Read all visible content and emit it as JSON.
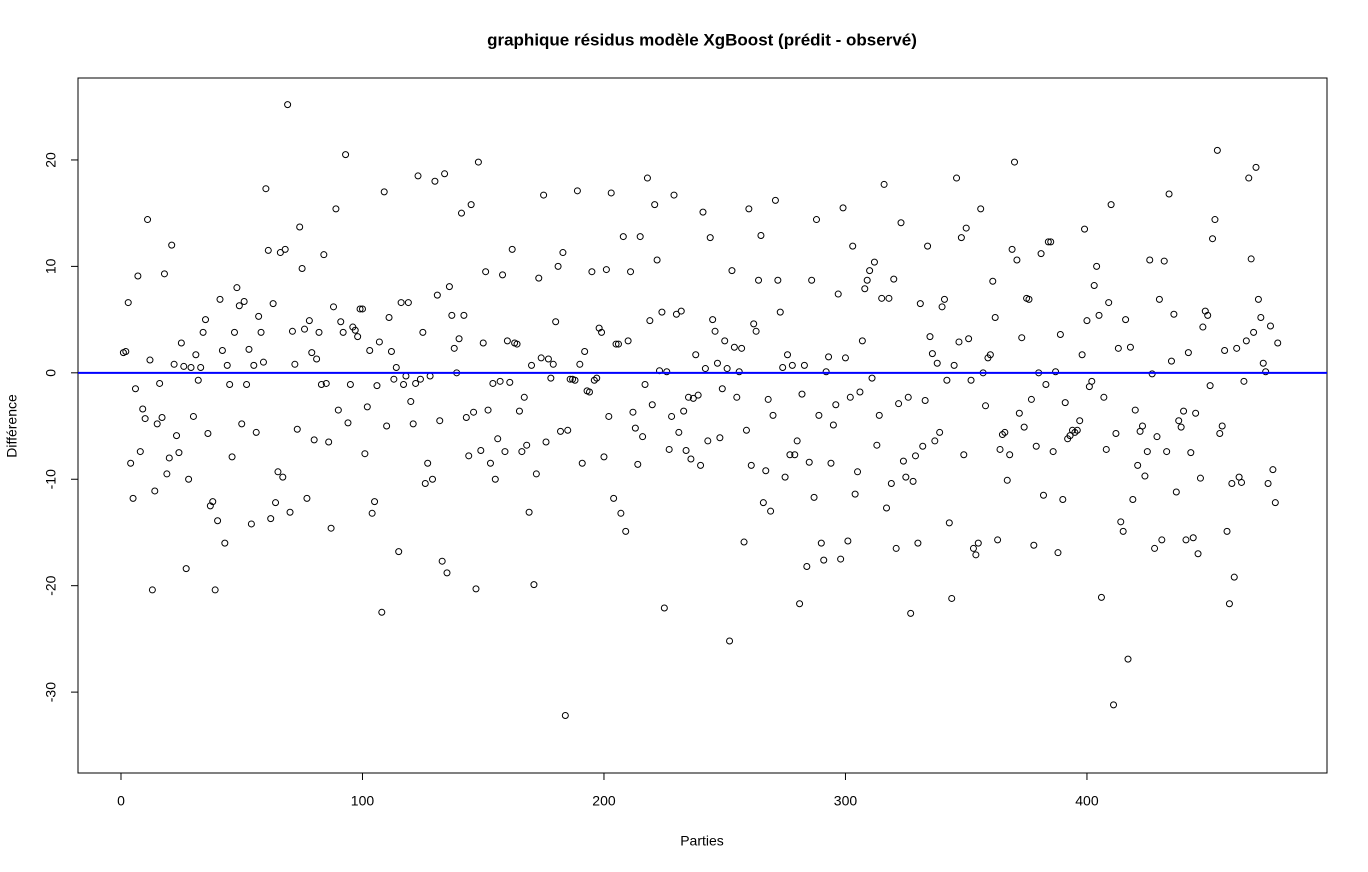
{
  "chart_data": {
    "type": "scatter",
    "title": "graphique résidus modèle XgBoost (prédit - observé)",
    "x_label": "Parties",
    "y_label": "Différence",
    "color": "#000000",
    "reference_line": {
      "value": 0,
      "color": "#0000ff"
    },
    "xlim": [
      -17.8,
      499.4
    ],
    "ylim": [
      -37.6,
      27.7
    ],
    "xticks": [
      0,
      100,
      200,
      300,
      400
    ],
    "yticks": [
      -30,
      -20,
      -10,
      0,
      10,
      20
    ],
    "values": [
      1.9,
      2.0,
      6.6,
      -8.5,
      -11.8,
      -1.5,
      9.1,
      -7.4,
      -3.4,
      -4.3,
      14.4,
      1.2,
      -20.4,
      -11.1,
      -4.8,
      -1.0,
      -4.2,
      9.3,
      -9.5,
      -8.0,
      12.0,
      0.8,
      -5.9,
      -7.5,
      2.8,
      0.6,
      -18.4,
      -10.0,
      0.5,
      -4.1,
      1.7,
      -0.7,
      0.5,
      3.8,
      5.0,
      -5.7,
      -12.5,
      -12.1,
      -20.4,
      -13.9,
      6.9,
      2.1,
      -16.0,
      0.7,
      -1.1,
      -7.9,
      3.8,
      8.0,
      6.3,
      -4.8,
      6.7,
      -1.1,
      2.2,
      -14.2,
      0.7,
      -5.6,
      5.3,
      3.8,
      1.0,
      17.3,
      11.5,
      -13.7,
      6.5,
      -12.2,
      -9.3,
      11.3,
      -9.8,
      11.6,
      25.2,
      -13.1,
      3.9,
      0.8,
      -5.3,
      13.7,
      9.8,
      4.1,
      -11.8,
      4.9,
      1.9,
      -6.3,
      1.3,
      3.8,
      -1.1,
      11.1,
      -1.0,
      -6.5,
      -14.6,
      6.2,
      15.4,
      -3.5,
      4.8,
      3.8,
      20.5,
      -4.7,
      -1.1,
      4.3,
      4.0,
      3.4,
      6.0,
      6.0,
      -7.6,
      -3.2,
      2.1,
      -13.2,
      -12.1,
      -1.2,
      2.9,
      -22.5,
      17.0,
      -5.0,
      5.2,
      2.0,
      -0.6,
      0.5,
      -16.8,
      6.6,
      -1.1,
      -0.3,
      6.6,
      -2.7,
      -4.8,
      -1.0,
      18.5,
      -0.6,
      3.8,
      -10.4,
      -8.5,
      -0.3,
      -10.0,
      18.0,
      7.3,
      -4.5,
      -17.7,
      18.7,
      -18.8,
      8.1,
      5.4,
      2.3,
      0.0,
      3.2,
      15.0,
      5.4,
      -4.2,
      -7.8,
      15.8,
      -3.7,
      -20.3,
      19.8,
      -7.3,
      2.8,
      9.5,
      -3.5,
      -8.5,
      -1.0,
      -10.0,
      -6.2,
      -0.8,
      9.2,
      -7.4,
      3.0,
      -0.9,
      11.6,
      2.8,
      2.7,
      -3.6,
      -7.4,
      -2.3,
      -6.8,
      -13.1,
      0.7,
      -19.9,
      -9.5,
      8.9,
      1.4,
      16.7,
      -6.5,
      1.3,
      -0.5,
      0.8,
      4.8,
      10.0,
      -5.5,
      11.3,
      -32.2,
      -5.4,
      -0.6,
      -0.6,
      -0.7,
      17.1,
      0.8,
      -8.5,
      2.0,
      -1.7,
      -1.8,
      9.5,
      -0.7,
      -0.5,
      4.2,
      3.8,
      -7.9,
      9.7,
      -4.1,
      16.9,
      -11.8,
      2.7,
      2.7,
      -13.2,
      12.8,
      -14.9,
      3.0,
      9.5,
      -3.7,
      -5.2,
      -8.6,
      12.8,
      -6.0,
      -1.1,
      18.3,
      4.9,
      -3.0,
      15.8,
      10.6,
      0.2,
      5.7,
      -22.1,
      0.1,
      -7.2,
      -4.1,
      16.7,
      5.5,
      -5.6,
      5.8,
      -3.6,
      -7.3,
      -2.3,
      -8.1,
      -2.4,
      1.7,
      -2.1,
      -8.7,
      15.1,
      0.4,
      -6.4,
      12.7,
      5.0,
      3.9,
      0.9,
      -6.1,
      -1.5,
      3.0,
      0.4,
      -25.2,
      9.6,
      2.4,
      -2.3,
      0.1,
      2.3,
      -15.9,
      -5.4,
      15.4,
      -8.7,
      4.6,
      3.9,
      8.7,
      12.9,
      -12.2,
      -9.2,
      -2.5,
      -13.0,
      -4.0,
      16.2,
      8.7,
      5.7,
      0.5,
      -9.8,
      1.7,
      -7.7,
      0.7,
      -7.7,
      -6.4,
      -21.7,
      -2.0,
      0.7,
      -18.2,
      -8.4,
      8.7,
      -11.7,
      14.4,
      -4.0,
      -16.0,
      -17.6,
      0.1,
      1.5,
      -8.5,
      -4.9,
      -3.0,
      7.4,
      -17.5,
      15.5,
      1.4,
      -15.8,
      -2.3,
      11.9,
      -11.4,
      -9.3,
      -1.8,
      3.0,
      7.9,
      8.7,
      9.6,
      -0.5,
      10.4,
      -6.8,
      -4.0,
      7.0,
      17.7,
      -12.7,
      7.0,
      -10.4,
      8.8,
      -16.5,
      -2.9,
      14.1,
      -8.3,
      -9.8,
      -2.3,
      -22.6,
      -10.2,
      -7.8,
      -16.0,
      6.5,
      -6.9,
      -2.6,
      11.9,
      3.4,
      1.8,
      -6.4,
      0.9,
      -5.6,
      6.2,
      6.9,
      -0.7,
      -14.1,
      -21.2,
      0.7,
      18.3,
      2.9,
      12.7,
      -7.7,
      13.6,
      3.2,
      -0.7,
      -16.5,
      -17.1,
      -16.0,
      15.4,
      0.0,
      -3.1,
      1.4,
      1.7,
      8.6,
      5.2,
      -15.7,
      -7.2,
      -5.8,
      -5.6,
      -10.1,
      -7.7,
      11.6,
      19.8,
      10.6,
      -3.8,
      3.3,
      -5.1,
      7.0,
      6.9,
      -2.5,
      -16.2,
      -6.9,
      0.0,
      11.2,
      -11.5,
      -1.1,
      12.3,
      12.3,
      -7.4,
      0.1,
      -16.9,
      3.6,
      -11.9,
      -2.8,
      -6.2,
      -5.9,
      -5.4,
      -5.6,
      -5.4,
      -4.5,
      1.7,
      13.5,
      4.9,
      -1.3,
      -0.8,
      8.2,
      10.0,
      5.4,
      -21.1,
      -2.3,
      -7.2,
      6.6,
      15.8,
      -31.2,
      -5.7,
      2.3,
      -14.0,
      -14.9,
      5.0,
      -26.9,
      2.4,
      -11.9,
      -3.5,
      -8.7,
      -5.5,
      -5.0,
      -9.7,
      -7.4,
      10.6,
      -0.1,
      -16.5,
      -6.0,
      6.9,
      -15.7,
      10.5,
      -7.4,
      16.8,
      1.1,
      5.5,
      -11.2,
      -4.5,
      -5.1,
      -3.6,
      -15.7,
      1.9,
      -7.5,
      -15.5,
      -3.8,
      -17.0,
      -9.9,
      4.3,
      5.8,
      5.4,
      -1.2,
      12.6,
      14.4,
      20.9,
      -5.7,
      -5.0,
      2.1,
      -14.9,
      -21.7,
      -10.4,
      -19.2,
      2.3,
      -9.8,
      -10.3,
      -0.8,
      3.0,
      18.3,
      10.7,
      3.8,
      19.3,
      6.9,
      5.2,
      0.9,
      0.1,
      -10.4,
      4.4,
      -9.1,
      -12.2,
      2.8
    ]
  }
}
